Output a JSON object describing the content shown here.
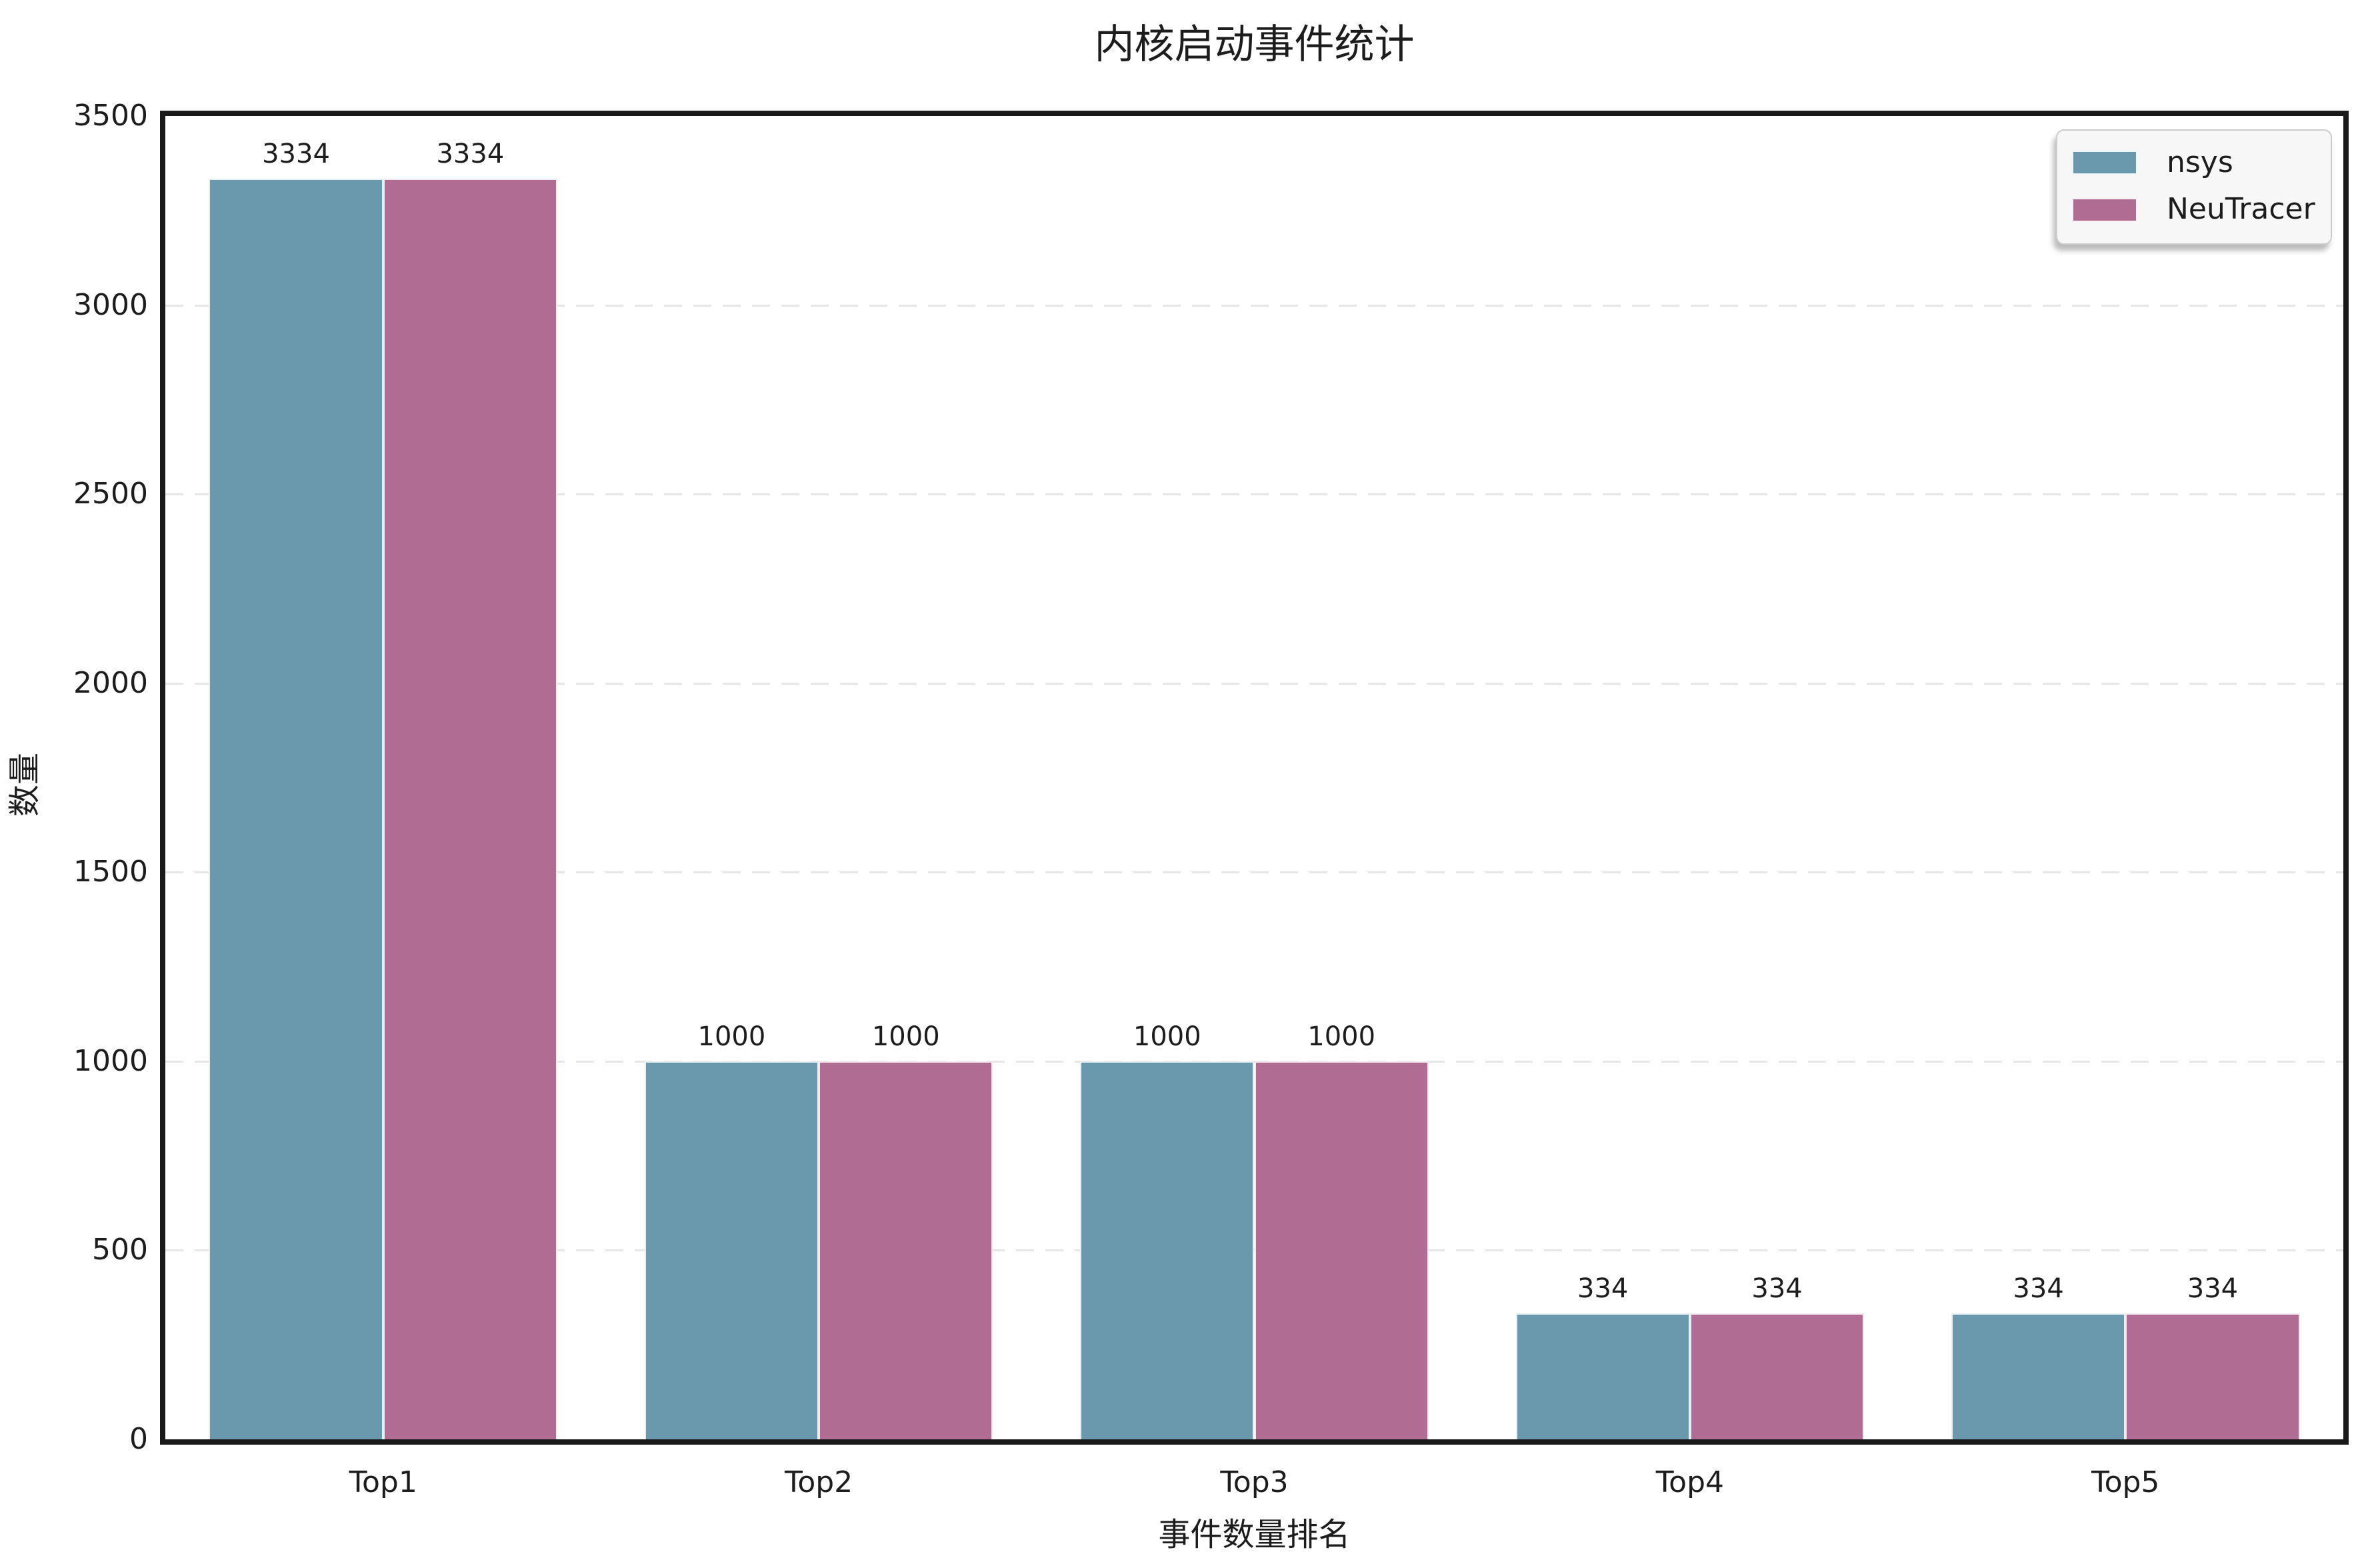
{
  "title": "内核启动事件统计",
  "axes": {
    "xlabel": "事件数量排名",
    "ylabel": "数量",
    "yticks": [
      "0",
      "500",
      "1000",
      "1500",
      "2000",
      "2500",
      "3000",
      "3500"
    ]
  },
  "legend": {
    "items": [
      {
        "label": "nsys",
        "color": "#6A99AD"
      },
      {
        "label": "NeuTracer",
        "color": "#B16C93"
      }
    ]
  },
  "chart_data": {
    "type": "bar",
    "title": "内核启动事件统计",
    "xlabel": "事件数量排名",
    "ylabel": "数量",
    "categories": [
      "Top1",
      "Top2",
      "Top3",
      "Top4",
      "Top5"
    ],
    "series": [
      {
        "name": "nsys",
        "color": "#6A99AD",
        "values": [
          3334,
          1000,
          1000,
          334,
          334
        ]
      },
      {
        "name": "NeuTracer",
        "color": "#B16C93",
        "values": [
          3334,
          1000,
          1000,
          334,
          334
        ]
      }
    ],
    "bar_value_labels": [
      [
        "3334",
        "3334"
      ],
      [
        "1000",
        "1000"
      ],
      [
        "1000",
        "1000"
      ],
      [
        "334",
        "334"
      ],
      [
        "334",
        "334"
      ]
    ],
    "ylim": [
      0,
      3500
    ],
    "ytick_values": [
      0,
      500,
      1000,
      1500,
      2000,
      2500,
      3000,
      3500
    ],
    "grid": "horizontal-dashed",
    "grid_color": "#e6e6e6",
    "legend_position": "top-right",
    "spine_color": "#1a1a1a",
    "text_color": "#1c1c1c",
    "bar_group_width_fraction": 0.8
  }
}
